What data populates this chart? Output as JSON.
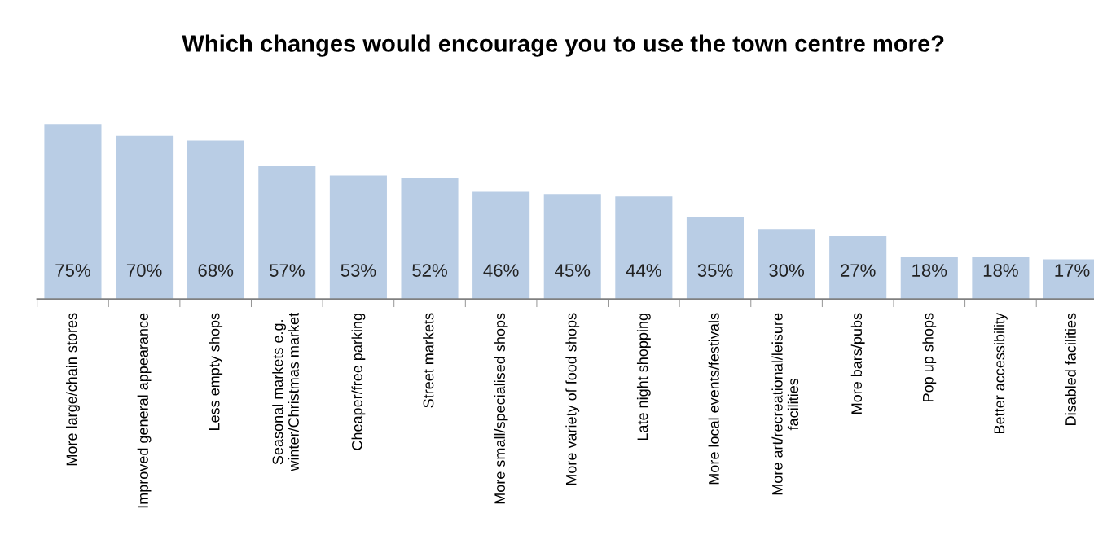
{
  "chart_data": {
    "type": "bar",
    "title": "Which changes would encourage you to use the town centre more?",
    "categories": [
      "More large/chain stores",
      "Improved general appearance",
      "Less empty shops",
      "Seasonal markets e.g.\nwinter/Christmas market",
      "Cheaper/free parking",
      "Street markets",
      "More small/specialised shops",
      "More variety of food shops",
      "Late night shopping",
      "More local events/festivals",
      "More art/recreational/leisure\nfacilities",
      "More bars/pubs",
      "Pop up shops",
      "Better accessibility",
      "Disabled facilities"
    ],
    "values": [
      75,
      70,
      68,
      57,
      53,
      52,
      46,
      45,
      44,
      35,
      30,
      27,
      18,
      18,
      17
    ],
    "value_labels": [
      "75%",
      "70%",
      "68%",
      "57%",
      "53%",
      "52%",
      "46%",
      "45%",
      "44%",
      "35%",
      "30%",
      "27%",
      "18%",
      "18%",
      "17%"
    ],
    "color": "#b9cde5",
    "tick_labels": "x",
    "grid": false,
    "legend": false
  }
}
